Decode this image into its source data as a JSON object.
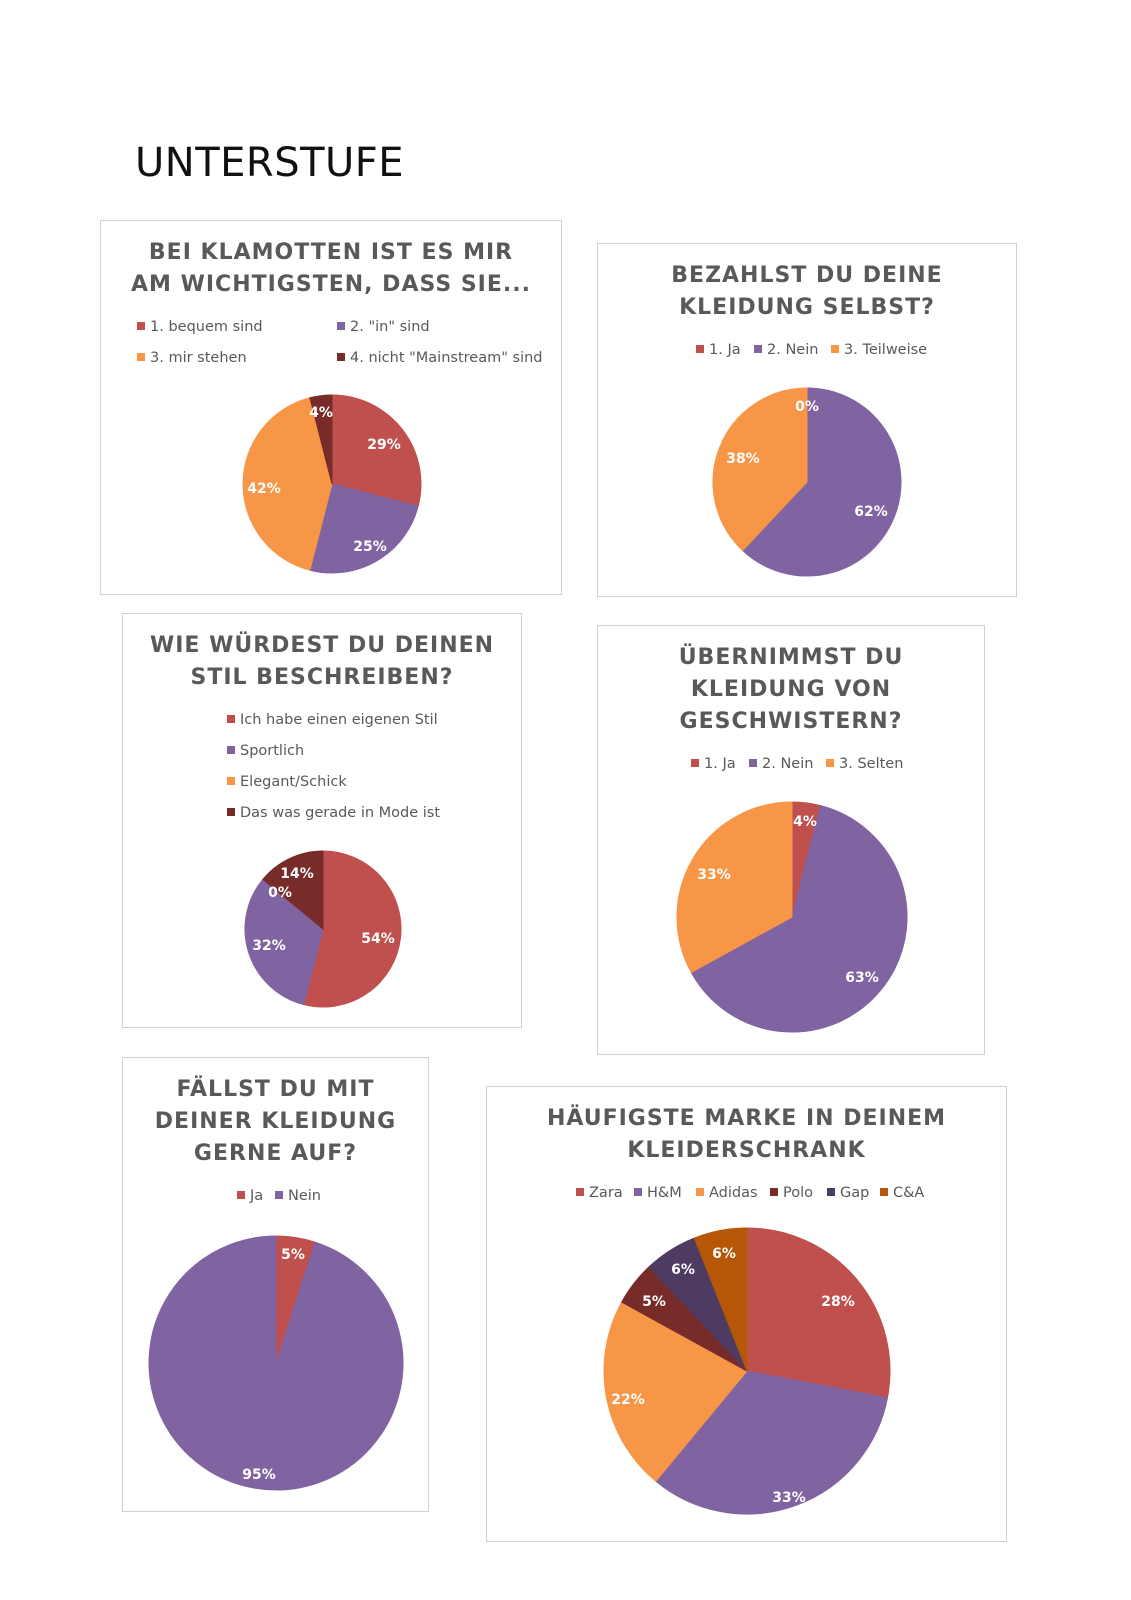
{
  "page": {
    "heading": "UNTERSTUFE"
  },
  "colors": {
    "red": "#c0504d",
    "purple": "#8064a2",
    "orange": "#f79646",
    "maroon": "#772c2a",
    "navy": "#4d3b62",
    "brown": "#b65708"
  },
  "chart_data": [
    {
      "type": "pie",
      "title": [
        "BEI KLAMOTTEN IST ES MIR",
        "AM WICHTIGSTEN, DASS SIE..."
      ],
      "categories": [
        "1. bequem sind",
        "2. \"in\" sind",
        "3. mir stehen",
        "4. nicht \"Mainstream\" sind"
      ],
      "values": [
        29,
        25,
        42,
        4
      ],
      "labels": [
        "29%",
        "25%",
        "42%",
        "4%"
      ],
      "colors": [
        "#c0504d",
        "#8064a2",
        "#f79646",
        "#772c2a"
      ],
      "legend": "top"
    },
    {
      "type": "pie",
      "title": [
        "BEZAHLST DU DEINE",
        "KLEIDUNG SELBST?"
      ],
      "categories": [
        "1. Ja",
        "2. Nein",
        "3. Teilweise"
      ],
      "values": [
        0,
        62,
        38
      ],
      "labels": [
        "0%",
        "62%",
        "38%"
      ],
      "colors": [
        "#c0504d",
        "#8064a2",
        "#f79646"
      ],
      "legend": "top"
    },
    {
      "type": "pie",
      "title": [
        "WIE WÜRDEST DU DEINEN",
        "STIL BESCHREIBEN?"
      ],
      "categories": [
        "Ich habe einen eigenen Stil",
        "Sportlich",
        "Elegant/Schick",
        "Das was gerade in Mode ist"
      ],
      "values": [
        54,
        32,
        0,
        14
      ],
      "labels": [
        "54%",
        "32%",
        "0%",
        "14%"
      ],
      "colors": [
        "#c0504d",
        "#8064a2",
        "#f79646",
        "#772c2a"
      ],
      "legend": "top"
    },
    {
      "type": "pie",
      "title": [
        "ÜBERNIMMST DU",
        "KLEIDUNG VON",
        "GESCHWISTERN?"
      ],
      "categories": [
        "1. Ja",
        "2. Nein",
        "3. Selten"
      ],
      "values": [
        4,
        63,
        33
      ],
      "labels": [
        "4%",
        "63%",
        "33%"
      ],
      "colors": [
        "#c0504d",
        "#8064a2",
        "#f79646"
      ],
      "legend": "top"
    },
    {
      "type": "pie",
      "title": [
        "FÄLLST DU MIT",
        "DEINER KLEIDUNG",
        "GERNE AUF?"
      ],
      "categories": [
        "Ja",
        "Nein"
      ],
      "values": [
        5,
        95
      ],
      "labels": [
        "5%",
        "95%"
      ],
      "colors": [
        "#c0504d",
        "#8064a2"
      ],
      "legend": "top"
    },
    {
      "type": "pie",
      "title": [
        "HÄUFIGSTE MARKE IN DEINEM",
        "KLEIDERSCHRANK"
      ],
      "categories": [
        "Zara",
        "H&M",
        "Adidas",
        "Polo",
        "Gap",
        "C&A"
      ],
      "values": [
        28,
        33,
        22,
        5,
        6,
        6
      ],
      "labels": [
        "28%",
        "33%",
        "22%",
        "5%",
        "6%",
        "6%"
      ],
      "colors": [
        "#c0504d",
        "#8064a2",
        "#f79646",
        "#772c2a",
        "#4d3b62",
        "#b65708"
      ],
      "legend": "top"
    }
  ]
}
